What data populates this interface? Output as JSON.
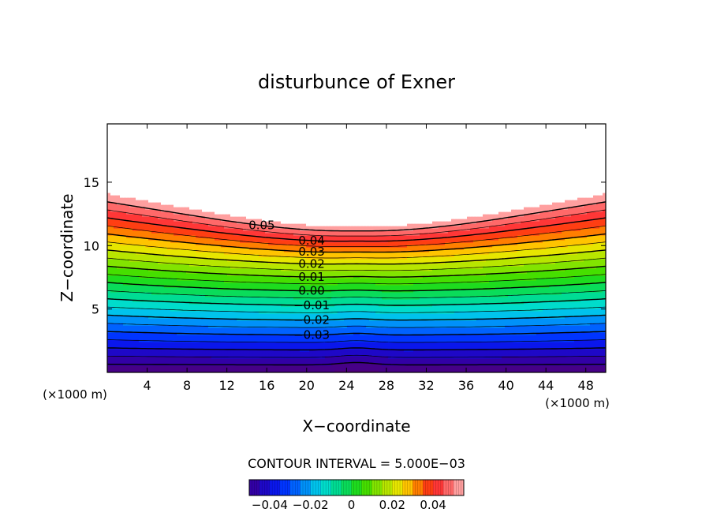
{
  "chart_data": {
    "type": "contour",
    "title": "disturbunce of Exner",
    "xlabel": "X−coordinate",
    "ylabel": "Z−coordinate",
    "x_unit_left": "(×1000 m)",
    "x_unit_right": "(×1000 m)",
    "xlim": [
      0,
      50
    ],
    "ylim": [
      0,
      19.6
    ],
    "x_ticks": [
      4,
      8,
      12,
      16,
      20,
      24,
      28,
      32,
      36,
      40,
      44,
      48
    ],
    "y_ticks": [
      5,
      10,
      15
    ],
    "contour_interval_text": "CONTOUR INTERVAL = 5.000E−03",
    "contour_interval": 0.005,
    "negative_contours_dashed": true,
    "colormap": "rainbow (purple-blue-cyan-green-yellow-red-pink), white above 0.05",
    "contour_labels": [
      {
        "text": "0.05",
        "value": 0.05
      },
      {
        "text": "0.04",
        "value": 0.04
      },
      {
        "text": "0.03",
        "value": 0.03
      },
      {
        "text": "0.02",
        "value": 0.02
      },
      {
        "text": "0.01",
        "value": 0.01
      },
      {
        "text": "0.00",
        "value": 0.0
      },
      {
        "text": "−0.01",
        "value": -0.01
      },
      {
        "text": "−0.02",
        "value": -0.02
      },
      {
        "text": "−0.03",
        "value": -0.03
      }
    ],
    "colorbar": {
      "min": -0.05,
      "max": 0.055,
      "tick_labels": [
        "−0.04",
        "−0.02",
        "0",
        "0.02",
        "0.04"
      ],
      "tick_values": [
        -0.04,
        -0.02,
        0,
        0.02,
        0.04
      ]
    }
  }
}
